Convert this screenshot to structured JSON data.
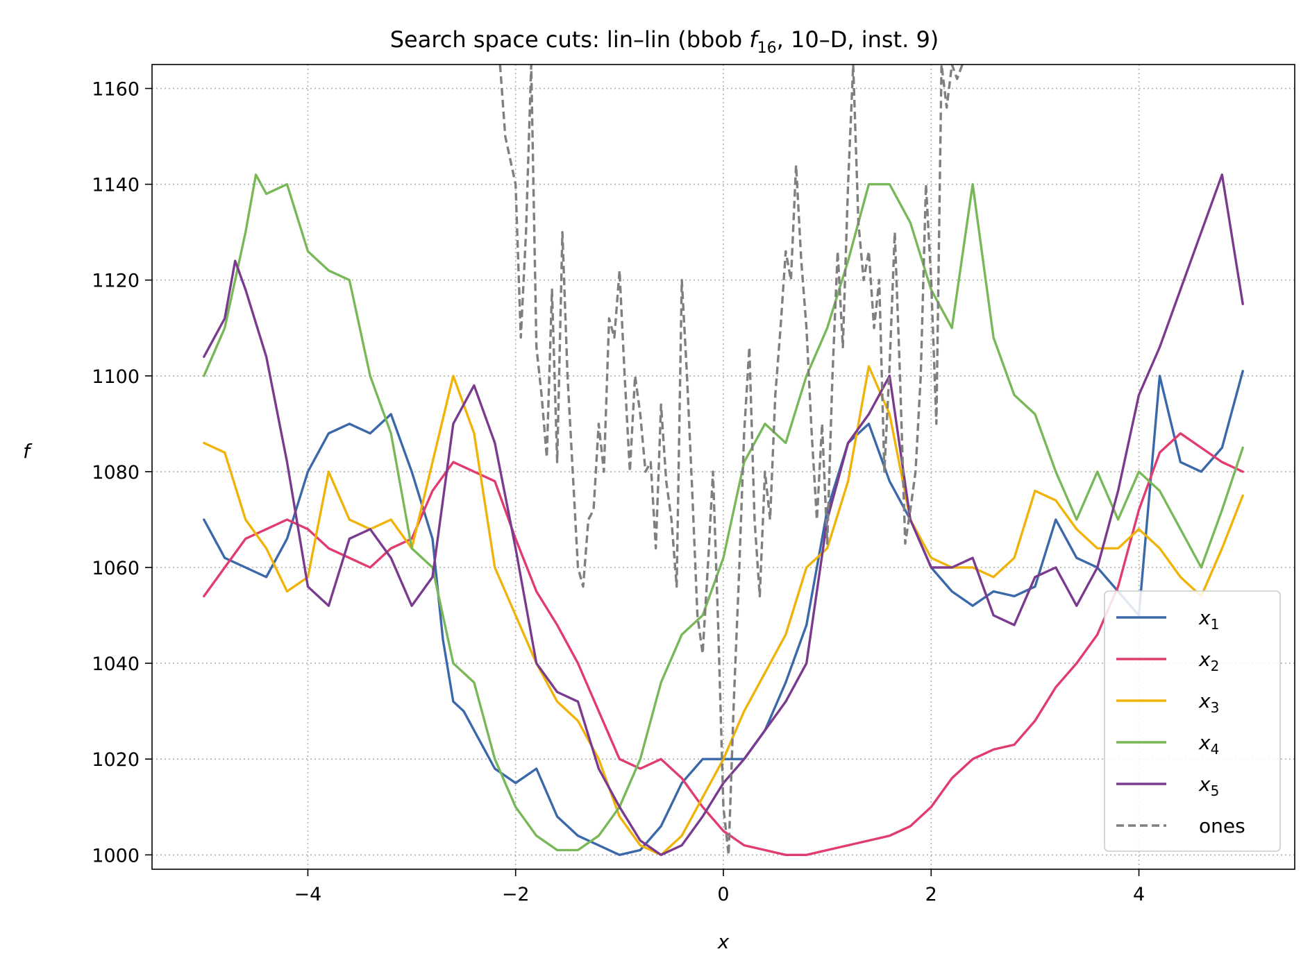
{
  "chart_data": {
    "type": "line",
    "title_prefix": "Search space cuts: lin–lin (bbob ",
    "title_func": "f",
    "title_func_sub": "16",
    "title_suffix": ", 10–D, inst. 9)",
    "xlabel": "x",
    "ylabel": "f",
    "xlim": [
      -5.5,
      5.5
    ],
    "ylim": [
      997,
      1165
    ],
    "xticks": [
      -4,
      -2,
      0,
      2,
      4
    ],
    "xtick_labels": [
      "−4",
      "−2",
      "0",
      "2",
      "4"
    ],
    "yticks": [
      1000,
      1020,
      1040,
      1060,
      1080,
      1100,
      1120,
      1140,
      1160
    ],
    "ytick_labels": [
      "1000",
      "1020",
      "1040",
      "1060",
      "1080",
      "1100",
      "1120",
      "1140",
      "1160"
    ],
    "grid": true,
    "legend_position": "lower-right",
    "series": [
      {
        "name": "x",
        "sub": "1",
        "color": "#3a68a9",
        "dash": "solid",
        "x": [
          -5.0,
          -4.8,
          -4.6,
          -4.4,
          -4.2,
          -4.0,
          -3.8,
          -3.6,
          -3.4,
          -3.2,
          -3.0,
          -2.8,
          -2.7,
          -2.6,
          -2.5,
          -2.4,
          -2.2,
          -2.0,
          -1.8,
          -1.6,
          -1.4,
          -1.2,
          -1.0,
          -0.8,
          -0.6,
          -0.4,
          -0.2,
          0.0,
          0.2,
          0.4,
          0.6,
          0.8,
          1.0,
          1.2,
          1.4,
          1.6,
          1.8,
          2.0,
          2.2,
          2.4,
          2.6,
          2.8,
          3.0,
          3.2,
          3.4,
          3.6,
          3.8,
          4.0,
          4.2,
          4.4,
          4.6,
          4.8,
          5.0
        ],
        "y": [
          1070,
          1062,
          1060,
          1058,
          1066,
          1080,
          1088,
          1090,
          1088,
          1092,
          1080,
          1066,
          1045,
          1032,
          1030,
          1026,
          1018,
          1015,
          1018,
          1008,
          1004,
          1002,
          1000,
          1001,
          1006,
          1015,
          1020,
          1020,
          1020,
          1026,
          1036,
          1048,
          1072,
          1086,
          1090,
          1078,
          1070,
          1060,
          1055,
          1052,
          1055,
          1054,
          1056,
          1070,
          1062,
          1060,
          1055,
          1050,
          1100,
          1082,
          1080,
          1085,
          1101
        ]
      },
      {
        "name": "x",
        "sub": "2",
        "color": "#e03c6e",
        "dash": "solid",
        "x": [
          -5.0,
          -4.8,
          -4.6,
          -4.4,
          -4.2,
          -4.0,
          -3.8,
          -3.6,
          -3.4,
          -3.2,
          -3.0,
          -2.8,
          -2.6,
          -2.4,
          -2.2,
          -2.0,
          -1.8,
          -1.6,
          -1.4,
          -1.2,
          -1.0,
          -0.8,
          -0.6,
          -0.4,
          -0.2,
          0.0,
          0.2,
          0.4,
          0.6,
          0.8,
          1.0,
          1.2,
          1.4,
          1.6,
          1.8,
          2.0,
          2.2,
          2.4,
          2.6,
          2.8,
          3.0,
          3.2,
          3.4,
          3.6,
          3.8,
          4.0,
          4.2,
          4.4,
          4.6,
          4.8,
          5.0
        ],
        "y": [
          1054,
          1060,
          1066,
          1068,
          1070,
          1068,
          1064,
          1062,
          1060,
          1064,
          1066,
          1076,
          1082,
          1080,
          1078,
          1066,
          1055,
          1048,
          1040,
          1030,
          1020,
          1018,
          1020,
          1016,
          1010,
          1005,
          1002,
          1001,
          1000,
          1000,
          1001,
          1002,
          1003,
          1004,
          1006,
          1010,
          1016,
          1020,
          1022,
          1023,
          1028,
          1035,
          1040,
          1046,
          1056,
          1072,
          1084,
          1088,
          1085,
          1082,
          1080
        ]
      },
      {
        "name": "x",
        "sub": "3",
        "color": "#f0b30a",
        "dash": "solid",
        "x": [
          -5.0,
          -4.8,
          -4.6,
          -4.4,
          -4.2,
          -4.0,
          -3.8,
          -3.6,
          -3.4,
          -3.2,
          -3.0,
          -2.8,
          -2.6,
          -2.4,
          -2.2,
          -2.0,
          -1.8,
          -1.6,
          -1.4,
          -1.2,
          -1.0,
          -0.8,
          -0.6,
          -0.4,
          -0.2,
          0.0,
          0.2,
          0.4,
          0.6,
          0.8,
          1.0,
          1.2,
          1.4,
          1.6,
          1.8,
          2.0,
          2.2,
          2.4,
          2.6,
          2.8,
          3.0,
          3.2,
          3.4,
          3.6,
          3.8,
          4.0,
          4.2,
          4.4,
          4.6,
          4.8,
          5.0
        ],
        "y": [
          1086,
          1084,
          1070,
          1064,
          1055,
          1058,
          1080,
          1070,
          1068,
          1070,
          1064,
          1082,
          1100,
          1088,
          1060,
          1050,
          1040,
          1032,
          1028,
          1020,
          1008,
          1002,
          1000,
          1004,
          1012,
          1020,
          1030,
          1038,
          1046,
          1060,
          1064,
          1078,
          1102,
          1092,
          1070,
          1062,
          1060,
          1060,
          1058,
          1062,
          1076,
          1074,
          1068,
          1064,
          1064,
          1068,
          1064,
          1058,
          1054,
          1064,
          1075
        ]
      },
      {
        "name": "x",
        "sub": "4",
        "color": "#79b859",
        "dash": "solid",
        "x": [
          -5.0,
          -4.8,
          -4.6,
          -4.5,
          -4.4,
          -4.2,
          -4.0,
          -3.8,
          -3.6,
          -3.4,
          -3.2,
          -3.0,
          -2.8,
          -2.6,
          -2.4,
          -2.2,
          -2.0,
          -1.8,
          -1.6,
          -1.4,
          -1.2,
          -1.0,
          -0.8,
          -0.6,
          -0.4,
          -0.2,
          0.0,
          0.2,
          0.4,
          0.6,
          0.8,
          1.0,
          1.2,
          1.4,
          1.6,
          1.8,
          2.0,
          2.2,
          2.4,
          2.6,
          2.8,
          3.0,
          3.2,
          3.4,
          3.6,
          3.8,
          4.0,
          4.2,
          4.4,
          4.6,
          4.8,
          5.0
        ],
        "y": [
          1100,
          1110,
          1130,
          1142,
          1138,
          1140,
          1126,
          1122,
          1120,
          1100,
          1088,
          1064,
          1060,
          1040,
          1036,
          1020,
          1010,
          1004,
          1001,
          1001,
          1004,
          1010,
          1020,
          1036,
          1046,
          1050,
          1062,
          1082,
          1090,
          1086,
          1100,
          1110,
          1124,
          1140,
          1140,
          1132,
          1118,
          1110,
          1140,
          1108,
          1096,
          1092,
          1080,
          1070,
          1080,
          1070,
          1080,
          1076,
          1068,
          1060,
          1072,
          1085
        ]
      },
      {
        "name": "x",
        "sub": "5",
        "color": "#7a3b8e",
        "dash": "solid",
        "x": [
          -5.0,
          -4.8,
          -4.7,
          -4.6,
          -4.4,
          -4.2,
          -4.0,
          -3.8,
          -3.6,
          -3.4,
          -3.2,
          -3.0,
          -2.8,
          -2.6,
          -2.4,
          -2.2,
          -2.0,
          -1.8,
          -1.6,
          -1.4,
          -1.2,
          -1.0,
          -0.8,
          -0.6,
          -0.4,
          -0.2,
          0.0,
          0.2,
          0.4,
          0.6,
          0.8,
          1.0,
          1.2,
          1.4,
          1.6,
          1.8,
          2.0,
          2.2,
          2.4,
          2.6,
          2.8,
          3.0,
          3.2,
          3.4,
          3.6,
          3.8,
          4.0,
          4.2,
          4.4,
          4.6,
          4.8,
          5.0
        ],
        "y": [
          1104,
          1112,
          1124,
          1118,
          1104,
          1082,
          1056,
          1052,
          1066,
          1068,
          1062,
          1052,
          1058,
          1090,
          1098,
          1086,
          1064,
          1040,
          1034,
          1032,
          1018,
          1010,
          1003,
          1000,
          1002,
          1008,
          1015,
          1020,
          1026,
          1032,
          1040,
          1070,
          1086,
          1092,
          1100,
          1070,
          1060,
          1060,
          1062,
          1050,
          1048,
          1058,
          1060,
          1052,
          1060,
          1076,
          1096,
          1106,
          1118,
          1130,
          1142,
          1115
        ]
      },
      {
        "name": "ones",
        "sub": "",
        "color": "#7f7f7f",
        "dash": "dashed",
        "x": [
          -2.15,
          -2.1,
          -2.0,
          -1.95,
          -1.9,
          -1.85,
          -1.8,
          -1.75,
          -1.7,
          -1.65,
          -1.6,
          -1.55,
          -1.5,
          -1.45,
          -1.4,
          -1.35,
          -1.3,
          -1.25,
          -1.2,
          -1.15,
          -1.1,
          -1.05,
          -1.0,
          -0.95,
          -0.9,
          -0.85,
          -0.8,
          -0.75,
          -0.7,
          -0.65,
          -0.6,
          -0.55,
          -0.5,
          -0.45,
          -0.4,
          -0.35,
          -0.3,
          -0.25,
          -0.2,
          -0.15,
          -0.1,
          -0.05,
          0.0,
          0.05,
          0.1,
          0.15,
          0.2,
          0.25,
          0.3,
          0.35,
          0.4,
          0.45,
          0.5,
          0.55,
          0.6,
          0.65,
          0.7,
          0.75,
          0.8,
          0.85,
          0.9,
          0.95,
          1.0,
          1.05,
          1.1,
          1.15,
          1.2,
          1.25,
          1.3,
          1.35,
          1.4,
          1.45,
          1.5,
          1.55,
          1.6,
          1.65,
          1.7,
          1.75,
          1.8,
          1.85,
          1.9,
          1.95,
          2.0,
          2.05,
          2.1,
          2.15,
          2.2,
          2.25,
          2.3
        ],
        "y": [
          1165,
          1150,
          1140,
          1108,
          1130,
          1165,
          1106,
          1096,
          1083,
          1118,
          1082,
          1130,
          1100,
          1080,
          1060,
          1056,
          1070,
          1072,
          1090,
          1080,
          1112,
          1108,
          1122,
          1100,
          1080,
          1100,
          1092,
          1080,
          1082,
          1064,
          1094,
          1078,
          1070,
          1056,
          1120,
          1100,
          1076,
          1050,
          1042,
          1060,
          1080,
          1048,
          1010,
          1000,
          1032,
          1058,
          1088,
          1106,
          1070,
          1054,
          1080,
          1070,
          1096,
          1110,
          1126,
          1120,
          1144,
          1124,
          1110,
          1088,
          1070,
          1090,
          1065,
          1100,
          1126,
          1106,
          1140,
          1165,
          1132,
          1120,
          1126,
          1110,
          1120,
          1080,
          1102,
          1130,
          1100,
          1065,
          1072,
          1080,
          1100,
          1140,
          1120,
          1090,
          1165,
          1156,
          1165,
          1162,
          1165
        ]
      }
    ]
  }
}
